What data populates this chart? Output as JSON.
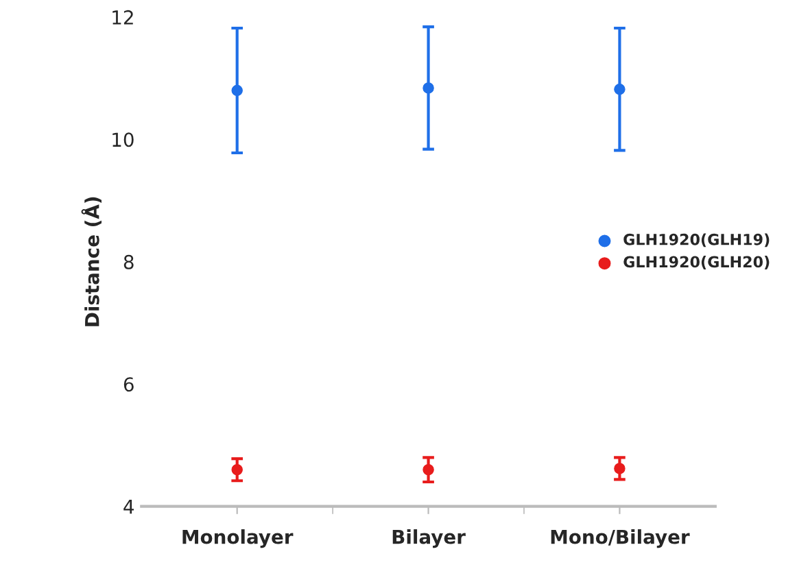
{
  "chart_data": {
    "type": "scatter",
    "ylabel": "Distance (Å)",
    "categories": [
      "Monolayer",
      "Bilayer",
      "Mono/Bilayer"
    ],
    "series": [
      {
        "name": "GLH1920(GLH19)",
        "color": "#1f6fe8",
        "values": [
          10.8,
          10.84,
          10.82
        ],
        "errors": [
          1.02,
          1.0,
          1.0
        ]
      },
      {
        "name": "GLH1920(GLH20)",
        "color": "#e81c1c",
        "values": [
          4.6,
          4.6,
          4.62
        ],
        "errors": [
          0.18,
          0.2,
          0.18
        ]
      }
    ],
    "ylim": [
      4,
      12
    ],
    "yticks": [
      4,
      6,
      8,
      10,
      12
    ],
    "grid": false,
    "legend": "right",
    "marker": "circle"
  }
}
